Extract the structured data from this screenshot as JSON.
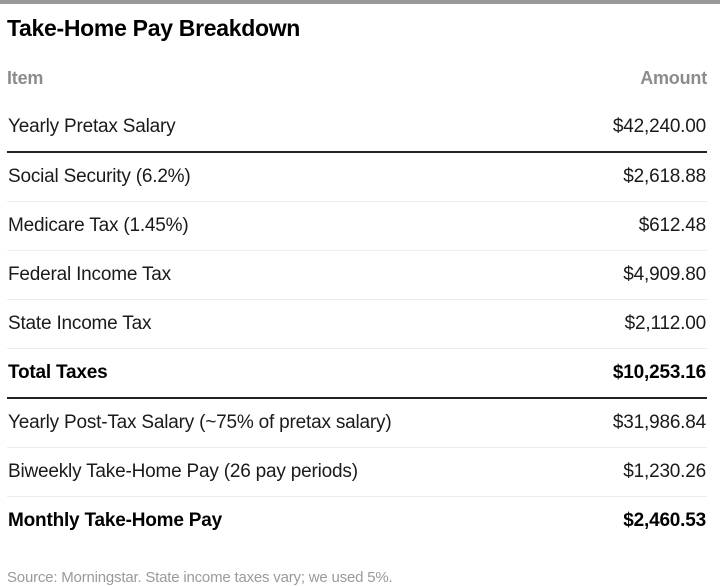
{
  "page": {
    "title": "Take-Home Pay Breakdown",
    "source_note": "Source: Morningstar. State income taxes vary; we used 5%."
  },
  "table": {
    "columns": {
      "item": "Item",
      "amount": "Amount"
    },
    "rows": [
      {
        "item": "Yearly Pretax Salary",
        "amount": "$42,240.00"
      },
      {
        "item": "Social Security (6.2%)",
        "amount": "$2,618.88"
      },
      {
        "item": "Medicare Tax (1.45%)",
        "amount": "$612.48"
      },
      {
        "item": "Federal Income Tax",
        "amount": "$4,909.80"
      },
      {
        "item": "State Income Tax",
        "amount": "$2,112.00"
      },
      {
        "item": "Total Taxes",
        "amount": "$10,253.16"
      },
      {
        "item": "Yearly Post-Tax Salary (~75% of pretax salary)",
        "amount": "$31,986.84"
      },
      {
        "item": "Biweekly Take-Home Pay (26 pay periods)",
        "amount": "$1,230.26"
      },
      {
        "item": "Monthly Take-Home Pay",
        "amount": "$2,460.53"
      }
    ]
  },
  "chart_data": {
    "type": "table",
    "title": "Take-Home Pay Breakdown",
    "columns": [
      "Item",
      "Amount"
    ],
    "rows": [
      [
        "Yearly Pretax Salary",
        42240.0
      ],
      [
        "Social Security (6.2%)",
        2618.88
      ],
      [
        "Medicare Tax (1.45%)",
        612.48
      ],
      [
        "Federal Income Tax",
        4909.8
      ],
      [
        "State Income Tax",
        2112.0
      ],
      [
        "Total Taxes",
        10253.16
      ],
      [
        "Yearly Post-Tax Salary (~75% of pretax salary)",
        31986.84
      ],
      [
        "Biweekly Take-Home Pay (26 pay periods)",
        1230.26
      ],
      [
        "Monthly Take-Home Pay",
        2460.53
      ]
    ],
    "bold_rows": [
      "Total Taxes",
      "Monthly Take-Home Pay"
    ],
    "source": "Source: Morningstar. State income taxes vary; we used 5%."
  },
  "colors": {
    "top_bar": "#999999",
    "heavy_divider": "#222222",
    "light_divider": "#ededed",
    "header_text": "#8c8c8c",
    "body_text": "#1a1a1a",
    "bold_text": "#000000",
    "footnote_text": "#9a9a9a"
  }
}
